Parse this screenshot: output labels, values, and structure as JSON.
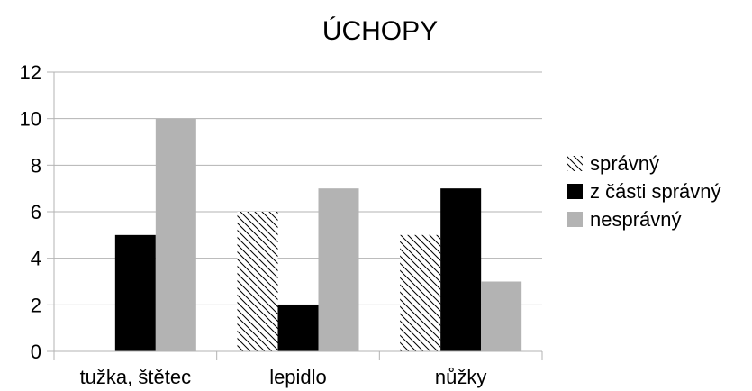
{
  "chart_data": {
    "type": "bar",
    "title": "ÚCHOPY",
    "categories": [
      "tužka, štětec",
      "lepidlo",
      "nůžky"
    ],
    "series": [
      {
        "name": "správný",
        "values": [
          0,
          6,
          5
        ],
        "fill": "hatch"
      },
      {
        "name": "z části správný",
        "values": [
          5,
          2,
          7
        ],
        "fill": "#000000"
      },
      {
        "name": "nesprávný",
        "values": [
          10,
          7,
          3
        ],
        "fill": "#b3b3b3"
      }
    ],
    "ylim": [
      0,
      12
    ],
    "yticks": [
      "0",
      "2",
      "4",
      "6",
      "8",
      "10",
      "12"
    ],
    "grid": true,
    "legend": "right"
  }
}
